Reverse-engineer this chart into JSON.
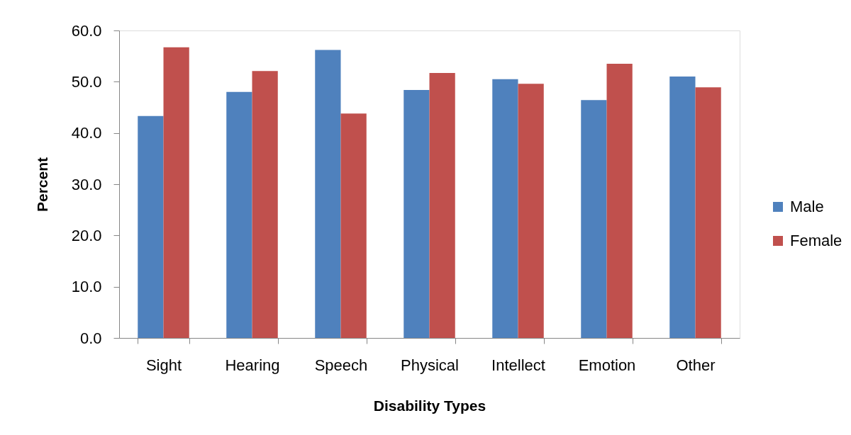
{
  "chart_data": {
    "type": "bar",
    "xlabel": "Disability Types",
    "ylabel": "Percent",
    "categories": [
      "Sight",
      "Hearing",
      "Speech",
      "Physical",
      "Intellect",
      "Emotion",
      "Other"
    ],
    "series": [
      {
        "name": "Male",
        "color": "#4f81bd",
        "values": [
          43.3,
          48.0,
          56.2,
          48.4,
          50.5,
          46.4,
          51.0
        ]
      },
      {
        "name": "Female",
        "color": "#c0504d",
        "values": [
          56.7,
          52.1,
          43.8,
          51.7,
          49.6,
          53.5,
          48.9
        ]
      }
    ],
    "ylim": [
      0,
      60
    ],
    "yticks": [
      {
        "value": 0,
        "label": "0.0"
      },
      {
        "value": 10,
        "label": "10.0"
      },
      {
        "value": 20,
        "label": "20.0"
      },
      {
        "value": 30,
        "label": "30.0"
      },
      {
        "value": 40,
        "label": "40.0"
      },
      {
        "value": 50,
        "label": "50.0"
      },
      {
        "value": 60,
        "label": "60.0"
      }
    ],
    "grid": false,
    "legend": "right"
  }
}
